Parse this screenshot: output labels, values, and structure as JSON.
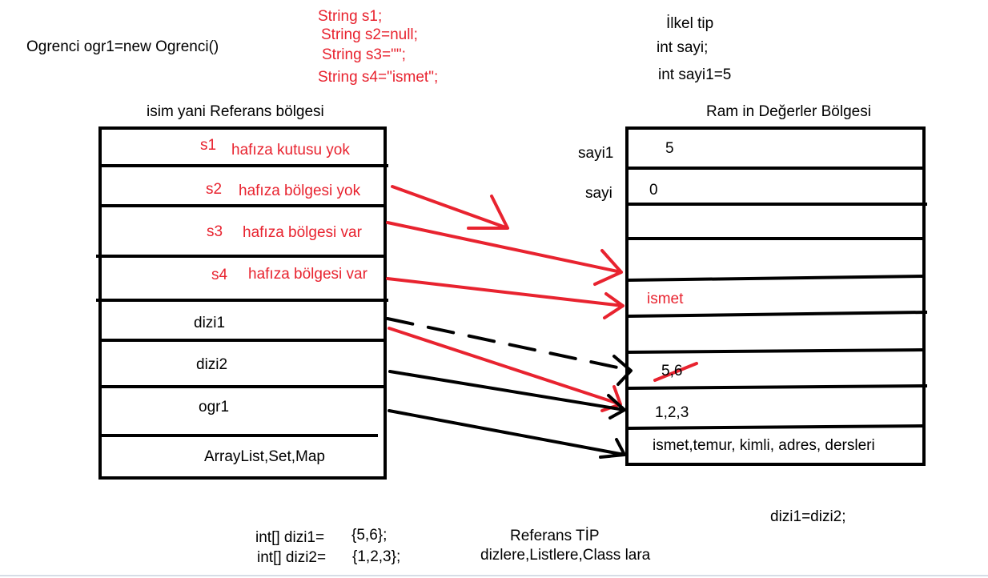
{
  "top_left": {
    "code": "Ogrenci ogr1=new Ogrenci()"
  },
  "strings": {
    "s1": "String s1;",
    "s2": "String s2=null;",
    "s3": "String s3=\"\";",
    "s4": "String s4=\"ismet\";"
  },
  "primitive": {
    "title": "İlkel tip",
    "line1": "int sayi;",
    "line2": "int sayi1=5"
  },
  "reference_region": {
    "title": "isim yani Referans bölgesi",
    "rows": [
      {
        "name": "s1",
        "note": "hafıza kutusu yok"
      },
      {
        "name": "s2",
        "note": "hafıza bölgesi yok"
      },
      {
        "name": "s3",
        "note": "hafıza bölgesi var"
      },
      {
        "name": "s4",
        "note": "hafıza bölgesi var"
      },
      {
        "name": "dizi1"
      },
      {
        "name": "dizi2"
      },
      {
        "name": "ogr1"
      },
      {
        "name": "ArrayList,Set,Map"
      }
    ]
  },
  "value_region": {
    "title": "Ram in Değerler Bölgesi",
    "labels": {
      "sayi1": "sayi1",
      "sayi": "sayi"
    },
    "cells": {
      "sayi1_value": "5",
      "sayi_value": "0",
      "ismet": "ismet",
      "crossed": "5,6",
      "array": "1,2,3",
      "object": "ismet,temur, kimli, adres, dersleri"
    }
  },
  "bottom": {
    "dizi1_decl": "int[] dizi1=",
    "dizi1_vals": "{5,6};",
    "dizi2_decl": "int[] dizi2=",
    "dizi2_vals": "{1,2,3};",
    "ref_title": "Referans TİP",
    "ref_desc": "dizlere,Listlere,Class lara",
    "assign": "dizi1=dizi2;"
  },
  "colors": {
    "red": "#e8232f",
    "black": "#000000"
  }
}
